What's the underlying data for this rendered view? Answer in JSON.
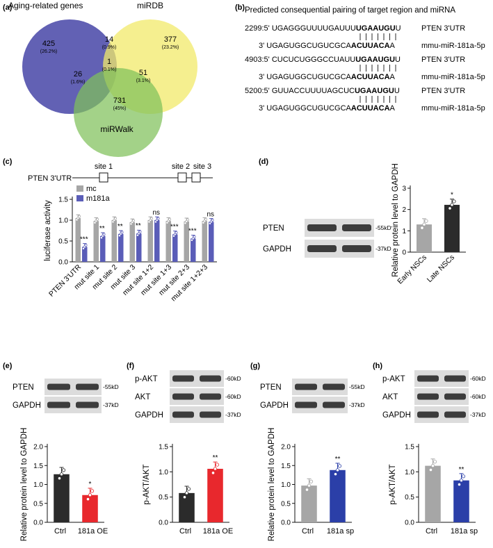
{
  "panels": {
    "a": "(a)",
    "b": "(b)",
    "c": "(c)",
    "d": "(d)",
    "e": "(e)",
    "f": "(f)",
    "g": "(g)",
    "h": "(h)"
  },
  "venn": {
    "set_labels": [
      "Aging-related genes",
      "miRDB",
      "miRWalk"
    ],
    "colors": [
      "#5a58b0",
      "#f2ea6a",
      "#7fc05a"
    ],
    "regions": [
      {
        "key": "a_only",
        "n": "425",
        "pct": "(26.2%)"
      },
      {
        "key": "ab",
        "n": "14",
        "pct": "(0.9%)"
      },
      {
        "key": "b_only",
        "n": "377",
        "pct": "(23.2%)"
      },
      {
        "key": "abc",
        "n": "1",
        "pct": "(0.1%)"
      },
      {
        "key": "ac",
        "n": "26",
        "pct": "(1.6%)"
      },
      {
        "key": "bc",
        "n": "51",
        "pct": "(3.1%)"
      },
      {
        "key": "c_only",
        "n": "731",
        "pct": "(45%)"
      }
    ]
  },
  "pairing": {
    "title": "Predicted consequential pairing of target region and miRNA",
    "groups": [
      {
        "pos": "2299:5'",
        "utr_pre": "UGAGGGUUUUGAUUU",
        "utr_bold": "UGAAUGU",
        "utr_post": "U",
        "target": "PTEN 3'UTR",
        "mir_pre": "3' UGAGUGGCUGUCGCA",
        "mir_bold": "ACUUACA",
        "mir_post": "A",
        "mir": "mmu-miR-181a-5p"
      },
      {
        "pos": "4903:5'",
        "utr_pre": "CUCUCUGGGCCUAUU",
        "utr_bold": "UGAAUGU",
        "utr_post": "U",
        "target": "PTEN 3'UTR",
        "mir_pre": "3' UGAGUGGCUGUCGCA",
        "mir_bold": "ACUUACA",
        "mir_post": "A",
        "mir": "mmu-miR-181a-5p"
      },
      {
        "pos": "5200:5'",
        "utr_pre": "GUUACCUUUUAGCUC",
        "utr_bold": "UGAAUGU",
        "utr_post": "U",
        "target": "PTEN 3'UTR",
        "mir_pre": "3' UGAGUGGCUGUCGCA",
        "mir_bold": "ACUUACA",
        "mir_post": "A",
        "mir": "mmu-miR-181a-5p"
      }
    ]
  },
  "utr_map": {
    "label": "PTEN 3'UTR",
    "sites": [
      "site 1",
      "site 2",
      "site 3"
    ]
  },
  "chart_data": [
    {
      "panel": "c",
      "type": "bar",
      "categories": [
        "PTEN 3'UTR",
        "mut site 1",
        "mut site 2",
        "mut site 3",
        "mut site 1+2",
        "mut site 1+3",
        "mut site 2+3",
        "mut site 1+2+3"
      ],
      "series": [
        {
          "name": "mc",
          "color": "#a6a6a6",
          "values": [
            1.05,
            0.98,
            1.0,
            0.95,
            1.0,
            0.98,
            0.97,
            0.98
          ]
        },
        {
          "name": "m181a",
          "color": "#5a5db8",
          "values": [
            0.36,
            0.62,
            0.67,
            0.68,
            1.0,
            0.66,
            0.56,
            0.96
          ]
        }
      ],
      "significance": [
        "***",
        "**",
        "**",
        "**",
        "ns",
        "***",
        "***",
        "ns"
      ],
      "ylabel": "luciferase activity",
      "yticks": [
        "0.0",
        "0.5",
        "1.0",
        "1.5"
      ],
      "ylim": [
        0,
        1.5
      ]
    },
    {
      "panel": "d",
      "type": "bar",
      "categories": [
        "Early NSCs",
        "Late NSCs"
      ],
      "values": [
        1.3,
        2.22
      ],
      "colors": [
        "#a6a6a6",
        "#2b2b2b"
      ],
      "significance": [
        "",
        "*"
      ],
      "ylabel": "Relative protein level to GAPDH",
      "yticks": [
        "0",
        "1",
        "2",
        "3"
      ],
      "ylim": [
        0,
        3
      ]
    },
    {
      "panel": "e",
      "type": "bar",
      "categories": [
        "Ctrl",
        "181a OE"
      ],
      "values": [
        1.27,
        0.72
      ],
      "colors": [
        "#2b2b2b",
        "#e8282d"
      ],
      "significance": [
        "",
        "*"
      ],
      "ylabel": "Relative protein level to GAPDH",
      "yticks": [
        "0.0",
        "0.5",
        "1.0",
        "1.5",
        "2.0"
      ],
      "ylim": [
        0,
        2
      ]
    },
    {
      "panel": "f",
      "type": "bar",
      "categories": [
        "Ctrl",
        "181a OE"
      ],
      "values": [
        0.58,
        1.06
      ],
      "colors": [
        "#2b2b2b",
        "#e8282d"
      ],
      "significance": [
        "",
        "**"
      ],
      "ylabel": "p-AKT/AKT",
      "yticks": [
        "0.0",
        "0.5",
        "1.0",
        "1.5"
      ],
      "ylim": [
        0,
        1.5
      ]
    },
    {
      "panel": "g",
      "type": "bar",
      "categories": [
        "Ctrl",
        "181a sp"
      ],
      "values": [
        0.97,
        1.38
      ],
      "colors": [
        "#a6a6a6",
        "#2b3fa8"
      ],
      "significance": [
        "",
        "**"
      ],
      "ylabel": "Relative protein level to GAPDH",
      "yticks": [
        "0.0",
        "0.5",
        "1.0",
        "1.5",
        "2.0"
      ],
      "ylim": [
        0,
        2
      ]
    },
    {
      "panel": "h",
      "type": "bar",
      "categories": [
        "Ctrl",
        "181a sp"
      ],
      "values": [
        1.12,
        0.83
      ],
      "colors": [
        "#a6a6a6",
        "#2b3fa8"
      ],
      "significance": [
        "",
        "**"
      ],
      "ylabel": "p-AKT/AKT",
      "yticks": [
        "0.0",
        "0.5",
        "1.0",
        "1.5"
      ],
      "ylim": [
        0,
        1.5
      ]
    }
  ],
  "blots": {
    "d": {
      "rows": [
        {
          "protein": "PTEN",
          "size": "-55kD"
        },
        {
          "protein": "GAPDH",
          "size": "-37kD"
        }
      ]
    },
    "e": {
      "rows": [
        {
          "protein": "PTEN",
          "size": "-55kD"
        },
        {
          "protein": "GAPDH",
          "size": "-37kD"
        }
      ]
    },
    "f": {
      "rows": [
        {
          "protein": "p-AKT",
          "size": "-60kD"
        },
        {
          "protein": "AKT",
          "size": "-60kD"
        },
        {
          "protein": "GAPDH",
          "size": "-37kD"
        }
      ]
    },
    "g": {
      "rows": [
        {
          "protein": "PTEN",
          "size": "-55kD"
        },
        {
          "protein": "GAPDH",
          "size": "-37kD"
        }
      ]
    },
    "h": {
      "rows": [
        {
          "protein": "p-AKT",
          "size": "-60kD"
        },
        {
          "protein": "AKT",
          "size": "-60kD"
        },
        {
          "protein": "GAPDH",
          "size": "-37kD"
        }
      ]
    }
  }
}
